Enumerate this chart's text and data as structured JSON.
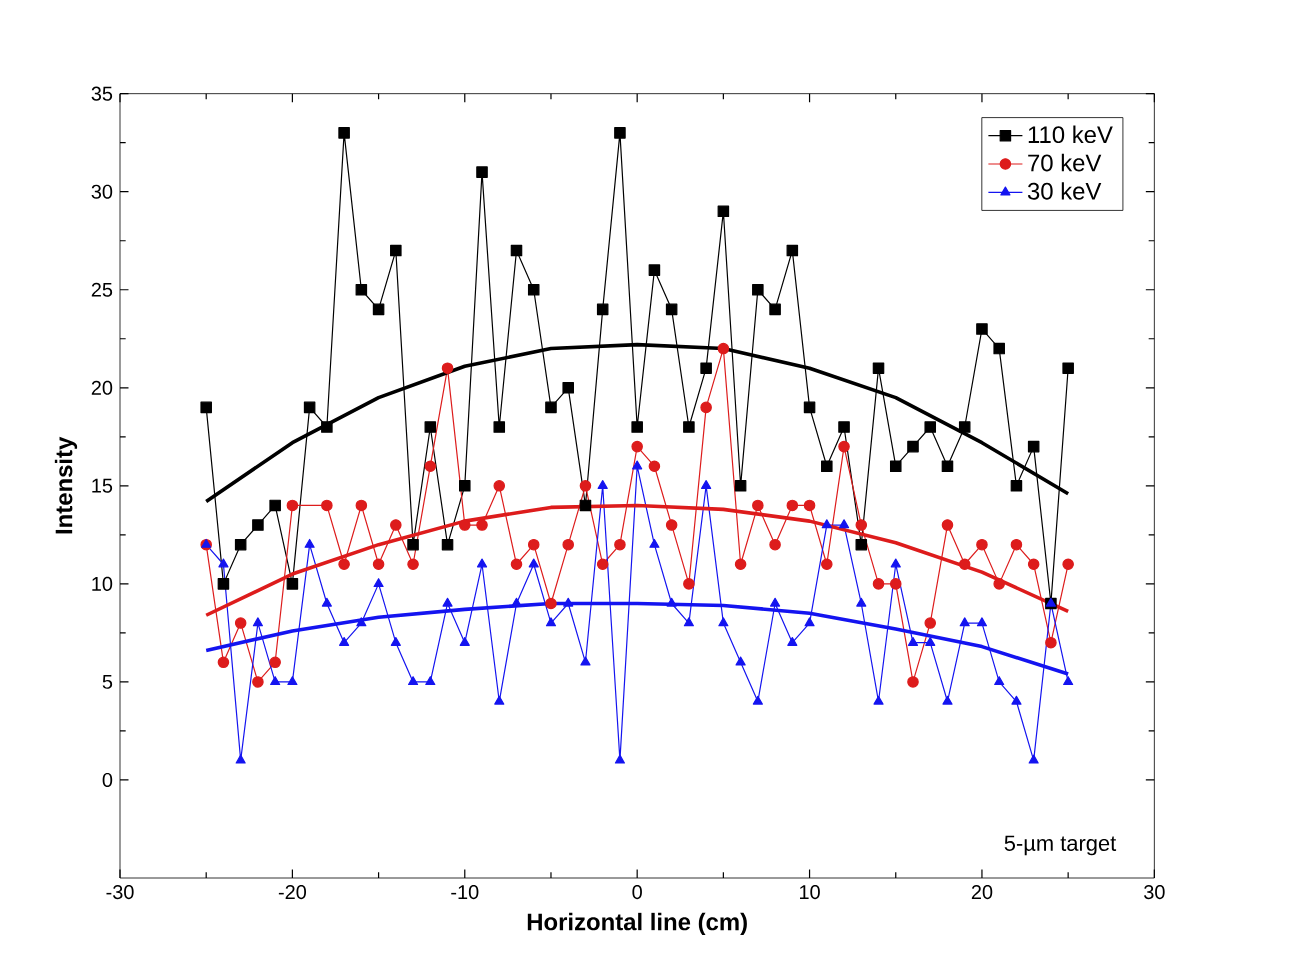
{
  "chart_data": {
    "type": "line",
    "xlabel": "Horizontal line (cm)",
    "ylabel": "Intensity",
    "annotations": [
      "5-µm target"
    ],
    "xlim": [
      -30,
      30
    ],
    "ylim": [
      -5,
      35
    ],
    "xticks": [
      -30,
      -20,
      -10,
      0,
      10,
      20,
      30
    ],
    "yticks": [
      0,
      5,
      10,
      15,
      20,
      25,
      30,
      35
    ],
    "grid": false,
    "legend": "top right",
    "line_style": "solid",
    "x": [
      -25,
      -24,
      -23,
      -22,
      -21,
      -20,
      -19,
      -18,
      -17,
      -16,
      -15,
      -14,
      -13,
      -12,
      -11,
      -10,
      -9,
      -8,
      -7,
      -6,
      -5,
      -4,
      -3,
      -2,
      -1,
      0,
      1,
      2,
      3,
      4,
      5,
      6,
      7,
      8,
      9,
      10,
      11,
      12,
      13,
      14,
      15,
      16,
      17,
      18,
      19,
      20,
      21,
      22,
      23,
      24,
      25
    ],
    "series": [
      {
        "name": "110 keV",
        "color": "#000000",
        "marker": "square",
        "values": [
          19,
          10,
          12,
          13,
          14,
          10,
          19,
          18,
          33,
          25,
          24,
          27,
          12,
          18,
          12,
          15,
          31,
          18,
          27,
          25,
          19,
          20,
          14,
          24,
          33,
          18,
          26,
          24,
          18,
          21,
          29,
          15,
          25,
          24,
          27,
          19,
          16,
          18,
          12,
          21,
          16,
          17,
          18,
          16,
          18,
          23,
          22,
          15,
          17,
          9,
          21
        ]
      },
      {
        "name": "70 keV",
        "color": "#dd1c1c",
        "marker": "circle",
        "values": [
          12,
          6,
          8,
          5,
          6,
          14,
          null,
          14,
          11,
          14,
          11,
          13,
          11,
          16,
          21,
          13,
          13,
          15,
          11,
          12,
          9,
          12,
          15,
          11,
          12,
          17,
          16,
          13,
          10,
          19,
          22,
          11,
          14,
          12,
          14,
          14,
          11,
          17,
          13,
          10,
          10,
          5,
          8,
          13,
          11,
          12,
          10,
          12,
          11,
          7,
          11
        ]
      },
      {
        "name": "30 keV",
        "color": "#1414f0",
        "marker": "triangle",
        "values": [
          12,
          11,
          1,
          8,
          5,
          5,
          12,
          9,
          7,
          8,
          10,
          7,
          5,
          5,
          9,
          7,
          11,
          4,
          9,
          11,
          8,
          9,
          6,
          15,
          1,
          16,
          12,
          9,
          8,
          15,
          8,
          6,
          4,
          9,
          7,
          8,
          13,
          13,
          9,
          4,
          11,
          7,
          7,
          4,
          8,
          8,
          5,
          4,
          1,
          9,
          5
        ]
      },
      {
        "color": "#000000",
        "marker": "none",
        "x": [
          -25,
          -20,
          -15,
          -10,
          -5,
          0,
          5,
          10,
          15,
          20,
          25
        ],
        "values": [
          14.2,
          17.2,
          19.5,
          21.1,
          22,
          22.2,
          22,
          21,
          19.5,
          17.2,
          14.6
        ]
      },
      {
        "color": "#dd1c1c",
        "marker": "none",
        "x": [
          -25,
          -20,
          -15,
          -10,
          -5,
          0,
          5,
          10,
          15,
          20,
          25
        ],
        "values": [
          8.4,
          10.5,
          12,
          13.2,
          13.9,
          14,
          13.8,
          13.2,
          12.1,
          10.6,
          8.6
        ]
      },
      {
        "color": "#1414f0",
        "marker": "none",
        "x": [
          -25,
          -20,
          -15,
          -10,
          -5,
          0,
          5,
          10,
          15,
          20,
          25
        ],
        "values": [
          6.6,
          7.6,
          8.3,
          8.7,
          9,
          9,
          8.9,
          8.5,
          7.7,
          6.8,
          5.4
        ]
      }
    ]
  }
}
